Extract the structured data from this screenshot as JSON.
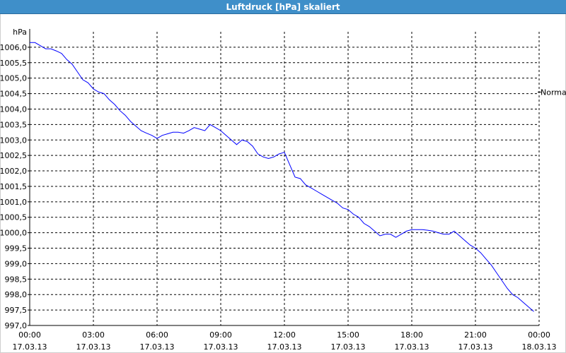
{
  "window": {
    "title": "Luftdruck [hPa] skaliert"
  },
  "chart_data": {
    "type": "line",
    "title": "Luftdruck [hPa] skaliert",
    "ylabel": "hPa",
    "xlabel": "",
    "ylim": [
      997.0,
      1006.5
    ],
    "xlim": [
      0,
      24
    ],
    "grid": true,
    "legend_position": "right",
    "y_ticks": [
      "1006,0",
      "1005,5",
      "1005,0",
      "1004,5",
      "1004,0",
      "1003,5",
      "1003,0",
      "1002,5",
      "1002,0",
      "1001,5",
      "1001,0",
      "1000,5",
      "1000,0",
      "999,5",
      "999,0",
      "998,5",
      "998,0",
      "997,5",
      "997,0"
    ],
    "x_ticks": [
      {
        "time": "00:00",
        "date": "17.03.13"
      },
      {
        "time": "03:00",
        "date": "17.03.13"
      },
      {
        "time": "06:00",
        "date": "17.03.13"
      },
      {
        "time": "09:00",
        "date": "17.03.13"
      },
      {
        "time": "12:00",
        "date": "17.03.13"
      },
      {
        "time": "15:00",
        "date": "17.03.13"
      },
      {
        "time": "18:00",
        "date": "17.03.13"
      },
      {
        "time": "21:00",
        "date": "17.03.13"
      },
      {
        "time": "00:00",
        "date": "18.03.13"
      }
    ],
    "reference_lines": [
      {
        "label": "Normal",
        "value": 1004.55
      }
    ],
    "series": [
      {
        "color": "#0000ff",
        "x": [
          0.0,
          0.25,
          0.5,
          0.75,
          1.0,
          1.25,
          1.5,
          1.75,
          2.0,
          2.25,
          2.5,
          2.75,
          3.0,
          3.25,
          3.5,
          3.75,
          4.0,
          4.25,
          4.5,
          4.75,
          5.0,
          5.25,
          5.5,
          5.75,
          6.0,
          6.25,
          6.5,
          6.75,
          7.0,
          7.25,
          7.5,
          7.75,
          8.0,
          8.25,
          8.5,
          8.75,
          9.0,
          9.25,
          9.5,
          9.75,
          10.0,
          10.25,
          10.5,
          10.75,
          11.0,
          11.25,
          11.5,
          11.75,
          12.0,
          12.25,
          12.5,
          12.75,
          13.0,
          13.25,
          13.5,
          13.75,
          14.0,
          14.25,
          14.5,
          14.75,
          15.0,
          15.25,
          15.5,
          15.75,
          16.0,
          16.25,
          16.5,
          16.75,
          17.0,
          17.25,
          17.5,
          17.75,
          18.0,
          18.25,
          18.5,
          18.75,
          19.0,
          19.25,
          19.5,
          19.75,
          20.0,
          20.25,
          20.5,
          20.75,
          21.0,
          21.25,
          21.5,
          21.75,
          22.0,
          22.25,
          22.5,
          22.75,
          23.0,
          23.25,
          23.5,
          23.75
        ],
        "values": [
          1006.15,
          1006.15,
          1006.05,
          1005.95,
          1005.95,
          1005.88,
          1005.8,
          1005.6,
          1005.45,
          1005.2,
          1004.95,
          1004.85,
          1004.65,
          1004.55,
          1004.5,
          1004.3,
          1004.15,
          1003.95,
          1003.8,
          1003.6,
          1003.45,
          1003.3,
          1003.22,
          1003.15,
          1003.05,
          1003.15,
          1003.2,
          1003.25,
          1003.25,
          1003.22,
          1003.3,
          1003.4,
          1003.35,
          1003.3,
          1003.5,
          1003.4,
          1003.3,
          1003.15,
          1003.0,
          1002.85,
          1003.0,
          1002.95,
          1002.8,
          1002.55,
          1002.45,
          1002.4,
          1002.45,
          1002.55,
          1002.6,
          1002.2,
          1001.8,
          1001.75,
          1001.55,
          1001.45,
          1001.35,
          1001.25,
          1001.15,
          1001.05,
          1000.95,
          1000.8,
          1000.75,
          1000.6,
          1000.5,
          1000.3,
          1000.2,
          1000.05,
          999.9,
          999.95,
          999.95,
          999.85,
          999.95,
          1000.05,
          1000.1,
          1000.1,
          1000.1,
          1000.08,
          1000.05,
          1000.0,
          999.95,
          999.95,
          1000.05,
          999.9,
          999.75,
          999.6,
          999.5,
          999.35,
          999.15,
          998.95,
          998.7,
          998.45,
          998.2,
          998.0,
          997.9,
          997.75,
          997.6,
          997.45
        ]
      }
    ]
  }
}
